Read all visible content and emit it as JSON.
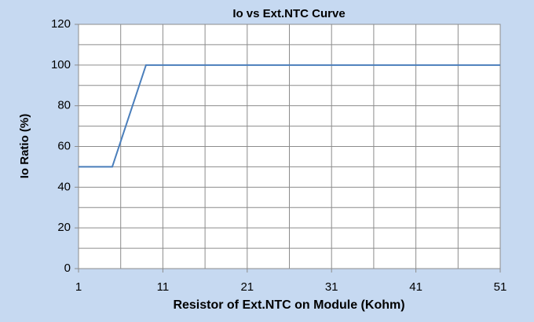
{
  "chart_data": {
    "type": "line",
    "title": "Io vs Ext.NTC Curve",
    "x_label": "Resistor of Ext.NTC on Module (Kohm)",
    "y_label": "Io Ratio (%)",
    "x": [
      1,
      5,
      9,
      51
    ],
    "series": [
      {
        "name": "Io Ratio",
        "color": "#4a7ebb",
        "values": [
          50,
          50,
          100,
          100
        ]
      }
    ],
    "xlim": [
      1,
      51
    ],
    "xticks": [
      1,
      11,
      21,
      31,
      41,
      51
    ],
    "ylim": [
      0,
      120
    ],
    "yticks": [
      0,
      20,
      40,
      60,
      80,
      100,
      120
    ],
    "x_minor_grid": [
      6,
      16,
      26,
      36,
      46
    ],
    "y_minor_grid": [
      10,
      30,
      50,
      70,
      90,
      110
    ],
    "grid": true
  }
}
